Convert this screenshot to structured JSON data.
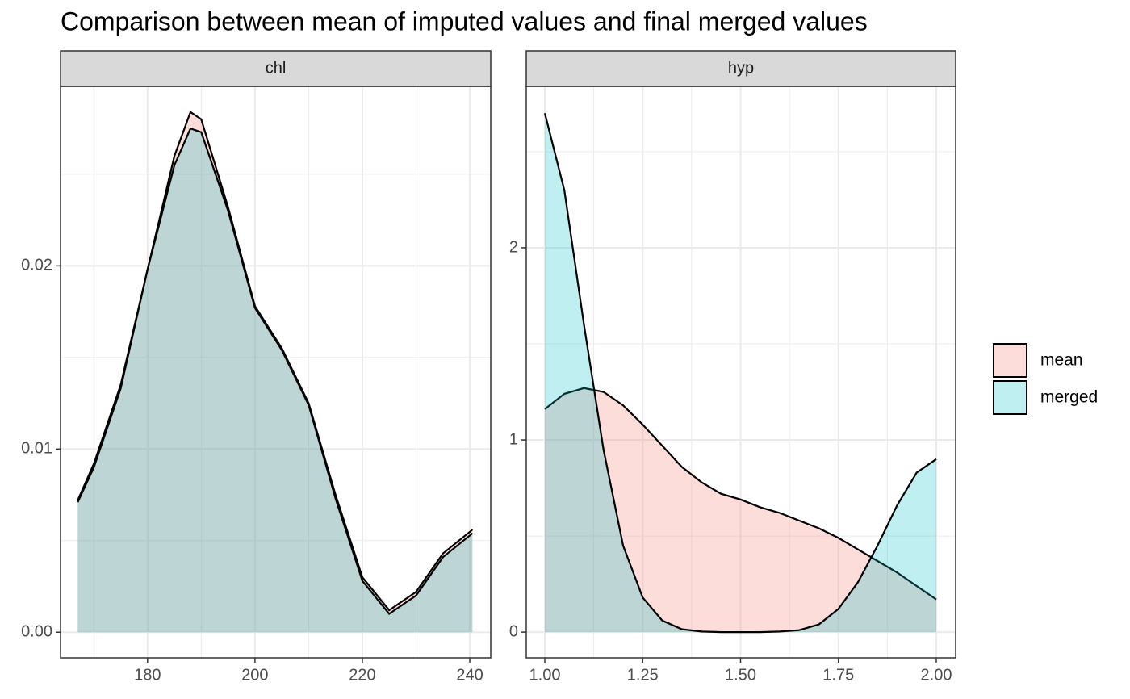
{
  "title": "Comparison between mean of imputed values and final merged values",
  "chart_data": [
    {
      "type": "area",
      "title": "chl",
      "x": [
        167,
        170,
        175,
        180,
        185,
        188,
        190,
        195,
        200,
        205,
        210,
        215,
        220,
        225,
        230,
        235,
        240.5
      ],
      "series": [
        {
          "name": "mean",
          "color": "#F8766D",
          "values": [
            0.0072,
            0.0092,
            0.0135,
            0.0198,
            0.026,
            0.0284,
            0.028,
            0.0232,
            0.0178,
            0.0155,
            0.0125,
            0.0075,
            0.003,
            0.0012,
            0.0022,
            0.0043,
            0.0056
          ]
        },
        {
          "name": "merged",
          "color": "#00BFC4",
          "values": [
            0.0071,
            0.009,
            0.0133,
            0.0198,
            0.0255,
            0.0275,
            0.0273,
            0.023,
            0.0177,
            0.0154,
            0.0124,
            0.0073,
            0.0028,
            0.001,
            0.002,
            0.0041,
            0.0054
          ]
        }
      ],
      "xlim": [
        163.8,
        243.9
      ],
      "xticks": [
        180,
        200,
        220,
        240
      ],
      "ylim": [
        -0.0014,
        0.0298
      ],
      "yticks": [
        {
          "value": 0,
          "label": "0.00"
        },
        0.01,
        0.02
      ],
      "grid": true
    },
    {
      "type": "area",
      "title": "hyp",
      "x": [
        1.0,
        1.05,
        1.1,
        1.15,
        1.2,
        1.25,
        1.3,
        1.35,
        1.4,
        1.45,
        1.5,
        1.55,
        1.6,
        1.65,
        1.7,
        1.75,
        1.8,
        1.85,
        1.9,
        1.95,
        2.0
      ],
      "series": [
        {
          "name": "mean",
          "color": "#F8766D",
          "values": [
            1.16,
            1.24,
            1.27,
            1.25,
            1.18,
            1.08,
            0.97,
            0.86,
            0.78,
            0.72,
            0.69,
            0.65,
            0.62,
            0.58,
            0.54,
            0.49,
            0.43,
            0.37,
            0.31,
            0.24,
            0.17
          ]
        },
        {
          "name": "merged",
          "color": "#00BFC4",
          "values": [
            2.7,
            2.3,
            1.6,
            0.95,
            0.45,
            0.18,
            0.06,
            0.015,
            0.003,
            0,
            0,
            0,
            0.003,
            0.01,
            0.04,
            0.12,
            0.26,
            0.45,
            0.66,
            0.83,
            0.9
          ]
        }
      ],
      "xlim": [
        0.9526,
        2.0495
      ],
      "xticks": [
        {
          "value": 1,
          "label": "1.00"
        },
        1.25,
        {
          "value": 1.5,
          "label": "1.50"
        },
        1.75,
        {
          "value": 2,
          "label": "2.00"
        }
      ],
      "ylim": [
        -0.134,
        2.84
      ],
      "yticks": [
        0,
        1,
        2
      ],
      "grid": true
    }
  ],
  "legend": "right"
}
